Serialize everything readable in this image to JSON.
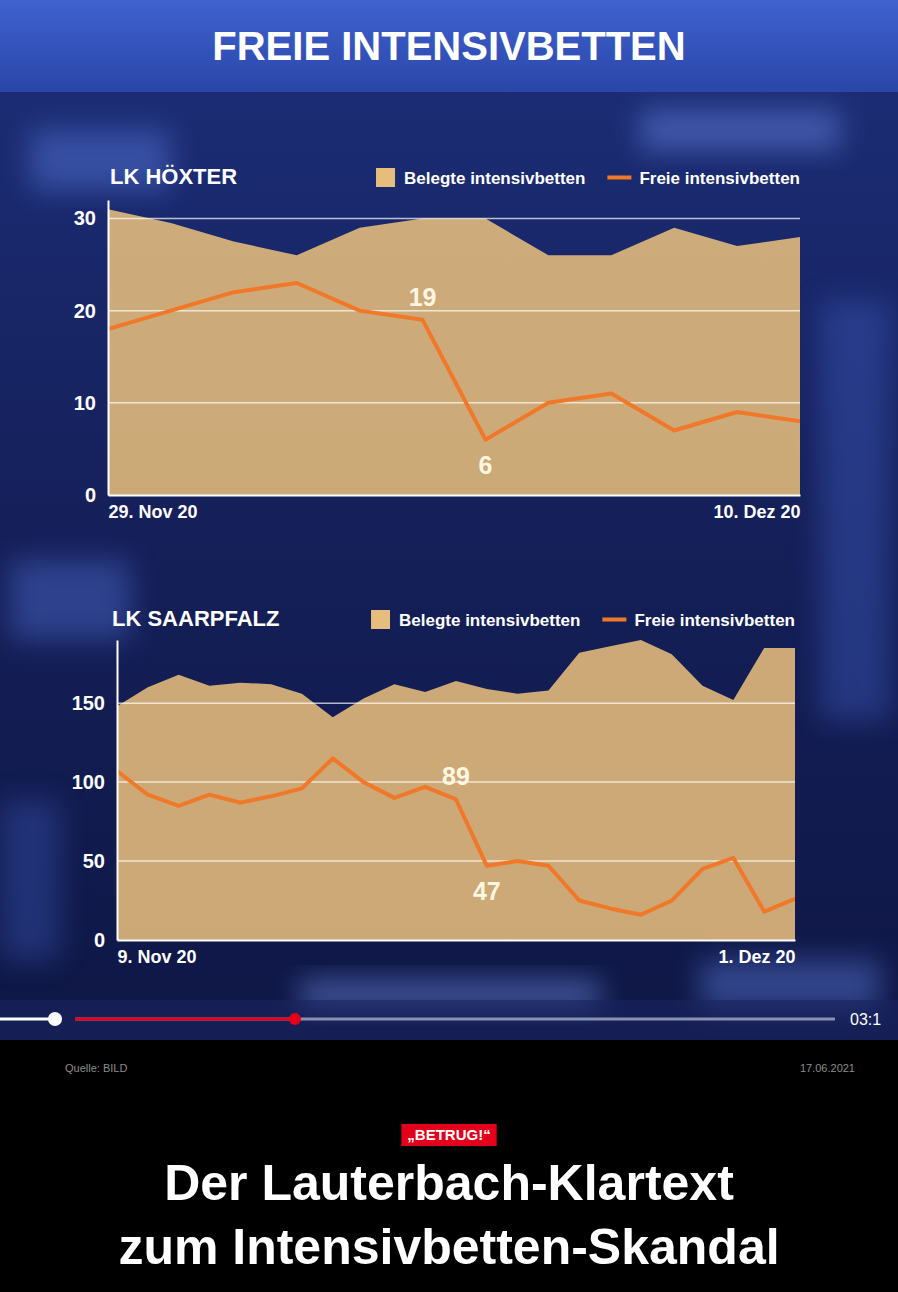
{
  "header": {
    "title": "FREIE INTENSIVBETTEN"
  },
  "chart_data": [
    {
      "type": "line",
      "title": "LK HÖXTER",
      "categories": [
        "29. Nov 20",
        null,
        null,
        null,
        null,
        null,
        null,
        null,
        null,
        null,
        null,
        "10. Dez 20"
      ],
      "series": [
        {
          "name": "Belegte intensivbetten",
          "type": "area",
          "color": "#e6bd7c",
          "values": [
            31,
            29.5,
            27.5,
            26,
            29,
            30,
            30,
            26,
            26,
            29,
            27,
            28
          ]
        },
        {
          "name": "Freie intensivbetten",
          "type": "line",
          "color": "#f07828",
          "values": [
            18,
            20,
            22,
            23,
            20,
            19,
            6,
            10,
            11,
            7,
            9,
            8
          ],
          "value_labels": [
            null,
            null,
            null,
            null,
            null,
            "19",
            "6",
            null,
            null,
            null,
            null,
            null
          ]
        }
      ],
      "ylim": [
        0,
        32
      ],
      "yticks": [
        0,
        10,
        20,
        30
      ],
      "grid": true,
      "legend": "top-right"
    },
    {
      "type": "line",
      "title": "LK SAARPFALZ",
      "categories": [
        "9. Nov 20",
        null,
        null,
        null,
        null,
        null,
        null,
        null,
        null,
        null,
        null,
        null,
        null,
        null,
        null,
        null,
        null,
        null,
        null,
        null,
        null,
        null,
        "1. Dez 20"
      ],
      "series": [
        {
          "name": "Belegte intensivbetten",
          "type": "area",
          "color": "#e6bd7c",
          "values": [
            148,
            160,
            168,
            161,
            163,
            162,
            156,
            141,
            153,
            162,
            157,
            164,
            159,
            156,
            158,
            182,
            186,
            190,
            181,
            161,
            152,
            185,
            185
          ]
        },
        {
          "name": "Freie intensivbetten",
          "type": "line",
          "color": "#f07828",
          "values": [
            107,
            92,
            85,
            92,
            87,
            91,
            96,
            115,
            100,
            90,
            97,
            89,
            47,
            50,
            47,
            25,
            20,
            16,
            25,
            45,
            52,
            18,
            26
          ],
          "value_labels": [
            null,
            null,
            null,
            null,
            null,
            null,
            null,
            null,
            null,
            null,
            null,
            "89",
            "47",
            null,
            null,
            null,
            null,
            null,
            null,
            null,
            null,
            null,
            null
          ]
        }
      ],
      "ylim": [
        0,
        190
      ],
      "yticks": [
        0,
        50,
        100,
        150
      ],
      "grid": true,
      "legend": "top-right"
    }
  ],
  "player": {
    "time": "03:1"
  },
  "footer": {
    "source": "Quelle: BILD",
    "date": "17.06.2021",
    "kicker": "„BETRUG!“",
    "headline": [
      "Der Lauterbach-Klartext",
      "zum Intensivbetten-Skandal"
    ]
  }
}
